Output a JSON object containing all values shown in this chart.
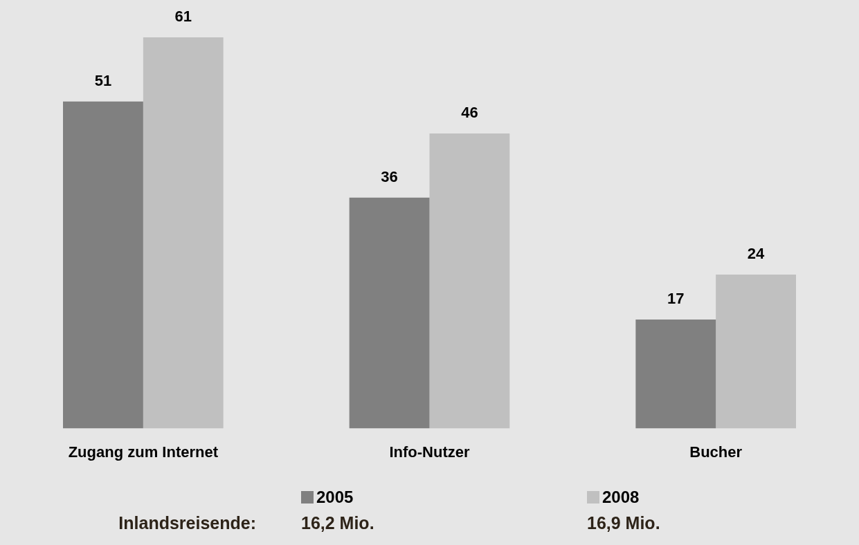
{
  "chart_data": {
    "type": "bar",
    "categories": [
      "Zugang zum Internet",
      "Info-Nutzer",
      "Bucher"
    ],
    "series": [
      {
        "name": "2005",
        "color": "#808080",
        "values": [
          51,
          36,
          17
        ]
      },
      {
        "name": "2008",
        "color": "#c0c0c0",
        "values": [
          61,
          46,
          24
        ]
      }
    ],
    "data_labels": true,
    "grid": false,
    "legend": "bottom",
    "annotations": [
      "Inlandsreisende:",
      "16,2 Mio.",
      "16,9 Mio."
    ]
  }
}
